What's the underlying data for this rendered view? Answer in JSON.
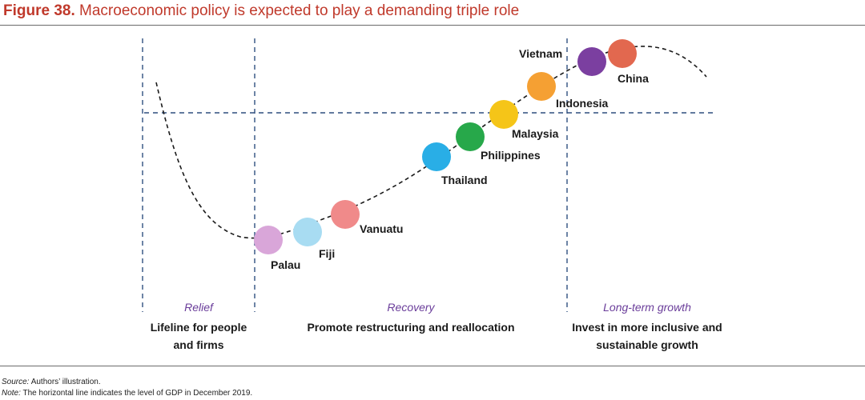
{
  "figure": {
    "label": "Figure 38.",
    "title": "Macroeconomic policy is expected to play a demanding triple role"
  },
  "phases": [
    {
      "name": "Relief",
      "description_lines": [
        "Lifeline for people",
        "and firms"
      ]
    },
    {
      "name": "Recovery",
      "description_lines": [
        "Promote restructuring and reallocation"
      ]
    },
    {
      "name": "Long-term growth",
      "description_lines": [
        "Invest in more inclusive and",
        "sustainable growth"
      ]
    }
  ],
  "countries": [
    {
      "name": "Palau",
      "color": "#d9a6d9"
    },
    {
      "name": "Fiji",
      "color": "#a8dcf2"
    },
    {
      "name": "Vanuatu",
      "color": "#f08a8a"
    },
    {
      "name": "Thailand",
      "color": "#29aee6"
    },
    {
      "name": "Philippines",
      "color": "#27a84a"
    },
    {
      "name": "Malaysia",
      "color": "#f5c518"
    },
    {
      "name": "Indonesia",
      "color": "#f5a033"
    },
    {
      "name": "Vietnam",
      "color": "#7b3fa0"
    },
    {
      "name": "China",
      "color": "#e2684f"
    }
  ],
  "colors": {
    "title": "#c0392b",
    "phase_name": "#6a3d9a",
    "guide_lines": "#2f4f7f",
    "curve": "#1a1a1a"
  },
  "source": {
    "label": "Source:",
    "text": "Authors’ illustration."
  },
  "note": {
    "label": "Note:",
    "text": "The horizontal line indicates the level of GDP in December 2019."
  }
}
